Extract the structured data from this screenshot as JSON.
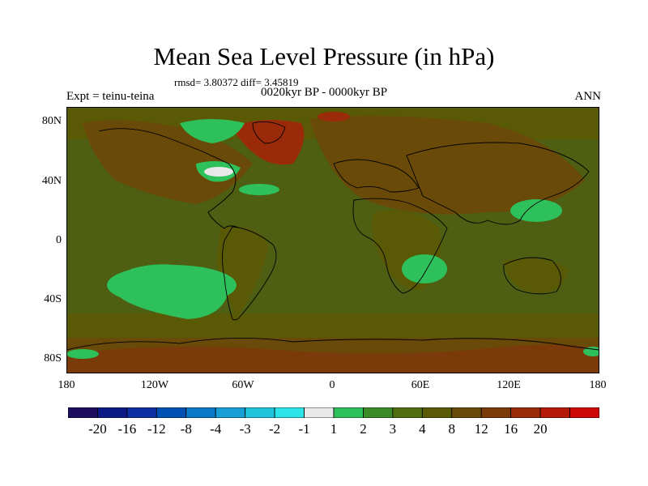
{
  "title": "Mean Sea Level Pressure (in hPa)",
  "stats": "rmsd= 3.80372 diff= 3.45819",
  "subtitle": "0020kyr BP - 0000kyr BP",
  "left_label": "Expt = teinu-teina",
  "right_label": "ANN",
  "lat_labels": [
    "80N",
    "40N",
    "0",
    "40S",
    "80S"
  ],
  "lon_labels": [
    "180",
    "120W",
    "60W",
    "0",
    "60E",
    "120E",
    "180"
  ],
  "colorbar": {
    "colors": [
      "#1c0d5e",
      "#0c1a86",
      "#0e2fa3",
      "#0050b4",
      "#0a78c8",
      "#179fd6",
      "#1fc4dc",
      "#2ce4e8",
      "#e8e8e8",
      "#2ec05a",
      "#3d8a2a",
      "#4e6e10",
      "#5a5a06",
      "#6a4a08",
      "#7a3a0a",
      "#9a2a0a",
      "#b31a0a",
      "#cc0808"
    ],
    "labels": [
      "-20",
      "-16",
      "-12",
      "-8",
      "-4",
      "-3",
      "-2",
      "-1",
      "1",
      "2",
      "3",
      "4",
      "8",
      "12",
      "16",
      "20"
    ]
  }
}
